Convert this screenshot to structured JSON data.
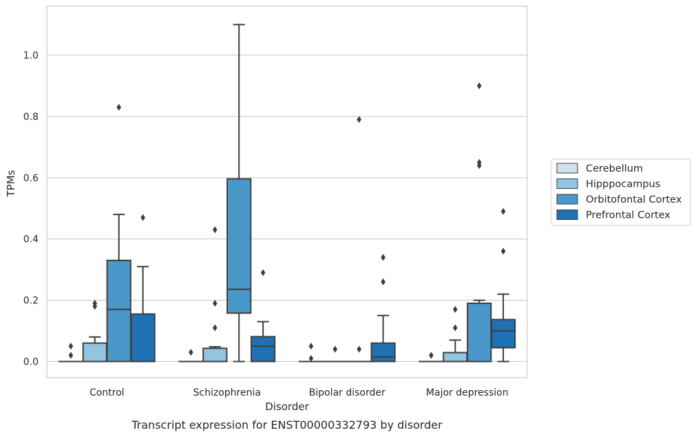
{
  "chart_data": {
    "type": "box",
    "caption": "Transcript expression for ENST00000332793 by disorder",
    "xlabel": "Disorder",
    "ylabel": "TPMs",
    "ylim": [
      -0.053,
      1.16
    ],
    "yticks": [
      "0.0",
      "0.2",
      "0.4",
      "0.6",
      "0.8",
      "1.0"
    ],
    "ytick_values": [
      0,
      0.2,
      0.4,
      0.6,
      0.8,
      1.0
    ],
    "grid": true,
    "legend_position": "right",
    "categories": [
      "Control",
      "Schizophrenia",
      "Bipolar disorder",
      "Major depression"
    ],
    "series": [
      {
        "name": "Cerebellum",
        "color": "#d0e1f2",
        "boxes": [
          {
            "whislo": 0,
            "q1": 0,
            "med": 0,
            "q3": 0,
            "whishi": 0,
            "fliers": [
              0.02,
              0.05
            ]
          },
          {
            "whislo": 0,
            "q1": 0,
            "med": 0,
            "q3": 0,
            "whishi": 0,
            "fliers": [
              0.03
            ]
          },
          {
            "whislo": 0,
            "q1": 0,
            "med": 0,
            "q3": 0,
            "whishi": 0,
            "fliers": [
              0.01,
              0.05
            ]
          },
          {
            "whislo": 0,
            "q1": 0,
            "med": 0,
            "q3": 0,
            "whishi": 0,
            "fliers": [
              0.02
            ]
          }
        ]
      },
      {
        "name": "Hipppocampus",
        "color": "#94c4df",
        "boxes": [
          {
            "whislo": 0,
            "q1": 0,
            "med": 0,
            "q3": 0.06,
            "whishi": 0.08,
            "fliers": [
              0.18,
              0.19
            ]
          },
          {
            "whislo": 0,
            "q1": 0,
            "med": 0,
            "q3": 0.043,
            "whishi": 0.048,
            "fliers": [
              0.11,
              0.19,
              0.43
            ]
          },
          {
            "whislo": 0,
            "q1": 0,
            "med": 0,
            "q3": 0,
            "whishi": 0,
            "fliers": [
              0.04
            ]
          },
          {
            "whislo": 0,
            "q1": 0,
            "med": 0,
            "q3": 0.029,
            "whishi": 0.07,
            "fliers": [
              0.11,
              0.17
            ]
          }
        ]
      },
      {
        "name": "Orbitofontal Cortex",
        "color": "#4a98c9",
        "boxes": [
          {
            "whislo": 0,
            "q1": 0,
            "med": 0.17,
            "q3": 0.33,
            "whishi": 0.48,
            "fliers": [
              0.83
            ]
          },
          {
            "whislo": 0,
            "q1": 0.158,
            "med": 0.236,
            "q3": 0.596,
            "whishi": 1.1,
            "fliers": []
          },
          {
            "whislo": 0,
            "q1": 0,
            "med": 0,
            "q3": 0,
            "whishi": 0,
            "fliers": [
              0.04,
              0.79
            ]
          },
          {
            "whislo": 0,
            "q1": 0,
            "med": 0,
            "q3": 0.19,
            "whishi": 0.2,
            "fliers": [
              0.64,
              0.65,
              0.9
            ]
          }
        ]
      },
      {
        "name": "Prefrontal Cortex",
        "color": "#2070b4",
        "boxes": [
          {
            "whislo": 0,
            "q1": 0,
            "med": 0,
            "q3": 0.155,
            "whishi": 0.31,
            "fliers": [
              0.47
            ]
          },
          {
            "whislo": 0,
            "q1": 0,
            "med": 0.05,
            "q3": 0.081,
            "whishi": 0.13,
            "fliers": [
              0.29
            ]
          },
          {
            "whislo": 0,
            "q1": 0,
            "med": 0.015,
            "q3": 0.06,
            "whishi": 0.15,
            "fliers": [
              0.26,
              0.34
            ]
          },
          {
            "whislo": 0,
            "q1": 0.045,
            "med": 0.1,
            "q3": 0.137,
            "whishi": 0.22,
            "fliers": [
              0.36,
              0.49
            ]
          }
        ]
      }
    ]
  }
}
